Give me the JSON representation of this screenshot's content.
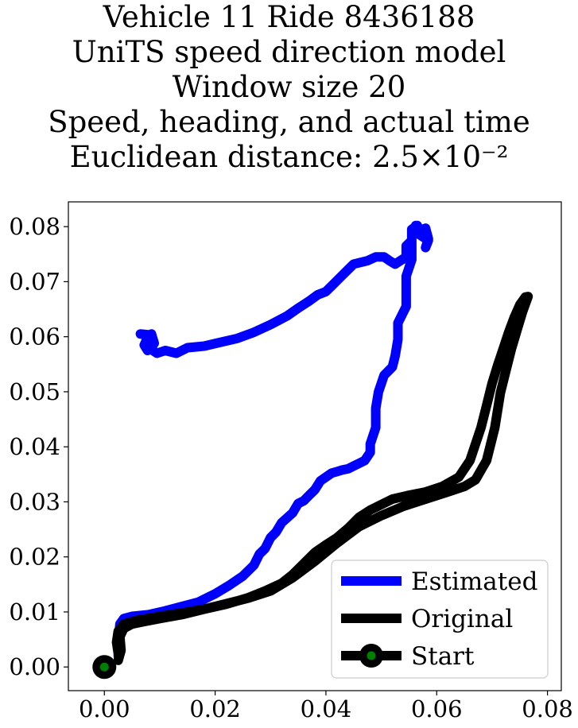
{
  "title_lines": [
    "Vehicle 11 Ride 8436188",
    "UniTS speed direction model",
    "Window size 20",
    "Speed, heading, and actual time",
    "Euclidean distance: 2.5×10⁻²"
  ],
  "chart_data": {
    "type": "line",
    "title": "Vehicle 11 Ride 8436188 / UniTS speed direction model / Window size 20 / Speed, heading, and actual time / Euclidean distance: 2.5×10⁻²",
    "xlabel": "",
    "ylabel": "",
    "xlim": [
      -0.0065,
      0.0825
    ],
    "ylim": [
      -0.0043,
      0.0845
    ],
    "xticks": [
      0.0,
      0.02,
      0.04,
      0.06,
      0.08
    ],
    "xtick_labels": [
      "0.00",
      "0.02",
      "0.04",
      "0.06",
      "0.08"
    ],
    "yticks": [
      0.0,
      0.01,
      0.02,
      0.03,
      0.04,
      0.05,
      0.06,
      0.07,
      0.08
    ],
    "ytick_labels": [
      "0.00",
      "0.01",
      "0.02",
      "0.03",
      "0.04",
      "0.05",
      "0.06",
      "0.07",
      "0.08"
    ],
    "grid": false,
    "legend_position": "lower right",
    "series": [
      {
        "name": "Estimated",
        "color": "#0000ff",
        "x": [
          0.0025,
          0.0027,
          0.0028,
          0.0035,
          0.005,
          0.008,
          0.011,
          0.014,
          0.017,
          0.02,
          0.0225,
          0.025,
          0.027,
          0.028,
          0.029,
          0.03,
          0.031,
          0.032,
          0.034,
          0.035,
          0.036,
          0.037,
          0.038,
          0.039,
          0.04,
          0.041,
          0.042,
          0.043,
          0.044,
          0.045,
          0.046,
          0.047,
          0.048,
          0.048,
          0.049,
          0.049,
          0.0495,
          0.0505,
          0.052,
          0.0525,
          0.053,
          0.053,
          0.0545,
          0.0545,
          0.0545,
          0.0555,
          0.0555,
          0.0555,
          0.056,
          0.0562,
          0.056,
          0.0565,
          0.0575,
          0.058,
          0.0585,
          0.058,
          0.0585,
          0.0565,
          0.0565,
          0.0555,
          0.0555,
          0.0545,
          0.0545,
          0.0525,
          0.0515,
          0.0505,
          0.049,
          0.0475,
          0.045,
          0.044,
          0.043,
          0.042,
          0.041,
          0.04,
          0.0385,
          0.037,
          0.035,
          0.033,
          0.03,
          0.027,
          0.024,
          0.021,
          0.018,
          0.015,
          0.013,
          0.011,
          0.0095,
          0.0083,
          0.0075,
          0.0085,
          0.009,
          0.0078,
          0.0072,
          0.0078,
          0.0085,
          0.0065
        ],
        "y": [
          0.002,
          0.0065,
          0.0078,
          0.0088,
          0.0092,
          0.0095,
          0.0102,
          0.011,
          0.0118,
          0.0133,
          0.0148,
          0.0165,
          0.0185,
          0.0205,
          0.0215,
          0.0235,
          0.0245,
          0.0262,
          0.028,
          0.0297,
          0.0302,
          0.0312,
          0.0322,
          0.0338,
          0.0345,
          0.0352,
          0.0355,
          0.0358,
          0.036,
          0.0365,
          0.037,
          0.0375,
          0.039,
          0.0405,
          0.0435,
          0.047,
          0.05,
          0.053,
          0.0545,
          0.0565,
          0.0595,
          0.0625,
          0.0655,
          0.068,
          0.071,
          0.074,
          0.0765,
          0.0785,
          0.0795,
          0.0802,
          0.0788,
          0.0793,
          0.0795,
          0.0797,
          0.0778,
          0.0762,
          0.0775,
          0.0788,
          0.0802,
          0.0795,
          0.0775,
          0.0765,
          0.0745,
          0.0732,
          0.0738,
          0.0745,
          0.0745,
          0.0738,
          0.0732,
          0.0722,
          0.0712,
          0.0702,
          0.0692,
          0.0682,
          0.0676,
          0.0665,
          0.0652,
          0.0638,
          0.0622,
          0.0608,
          0.0597,
          0.059,
          0.0583,
          0.058,
          0.057,
          0.0575,
          0.057,
          0.0578,
          0.0598,
          0.0605,
          0.0588,
          0.0575,
          0.0585,
          0.0598,
          0.0603,
          0.0605
        ]
      },
      {
        "name": "Original",
        "color": "#000000",
        "x": [
          0.0025,
          0.0022,
          0.0025,
          0.0035,
          0.006,
          0.01,
          0.014,
          0.018,
          0.022,
          0.026,
          0.029,
          0.032,
          0.034,
          0.036,
          0.038,
          0.04,
          0.042,
          0.044,
          0.046,
          0.048,
          0.05,
          0.052,
          0.055,
          0.058,
          0.061,
          0.064,
          0.066,
          0.068,
          0.069,
          0.07,
          0.071,
          0.072,
          0.073,
          0.074,
          0.075,
          0.076,
          0.0765,
          0.0755,
          0.0745,
          0.0735,
          0.0725,
          0.0715,
          0.0705,
          0.069,
          0.067,
          0.065,
          0.062,
          0.058,
          0.054,
          0.05,
          0.046,
          0.042,
          0.038,
          0.034,
          0.03,
          0.026,
          0.022,
          0.018,
          0.014,
          0.01,
          0.007,
          0.005,
          0.0035,
          0.0028,
          0.003,
          0.0025
        ],
        "y": [
          0.0025,
          0.0045,
          0.0065,
          0.0078,
          0.0085,
          0.0092,
          0.0098,
          0.0105,
          0.0114,
          0.0126,
          0.0138,
          0.0152,
          0.0168,
          0.0188,
          0.0208,
          0.0222,
          0.0235,
          0.0252,
          0.0272,
          0.0285,
          0.0295,
          0.0305,
          0.0312,
          0.0318,
          0.0328,
          0.0345,
          0.0375,
          0.0435,
          0.0475,
          0.0515,
          0.0548,
          0.0578,
          0.0608,
          0.0635,
          0.0658,
          0.0672,
          0.0673,
          0.0645,
          0.0612,
          0.0578,
          0.0538,
          0.0498,
          0.0435,
          0.0375,
          0.034,
          0.0328,
          0.0318,
          0.0305,
          0.0292,
          0.0275,
          0.0255,
          0.0225,
          0.0192,
          0.0162,
          0.0138,
          0.0125,
          0.0115,
          0.0105,
          0.0095,
          0.0088,
          0.0082,
          0.0078,
          0.007,
          0.0055,
          0.003,
          0.0012
        ]
      }
    ],
    "start": {
      "name": "Start",
      "x": 0.0,
      "y": 0.0,
      "edge_color": "#000000",
      "face_color": "#008000"
    },
    "extra_marker": {
      "x": 0.0728,
      "y": 0.0578,
      "color": "#000000"
    }
  }
}
